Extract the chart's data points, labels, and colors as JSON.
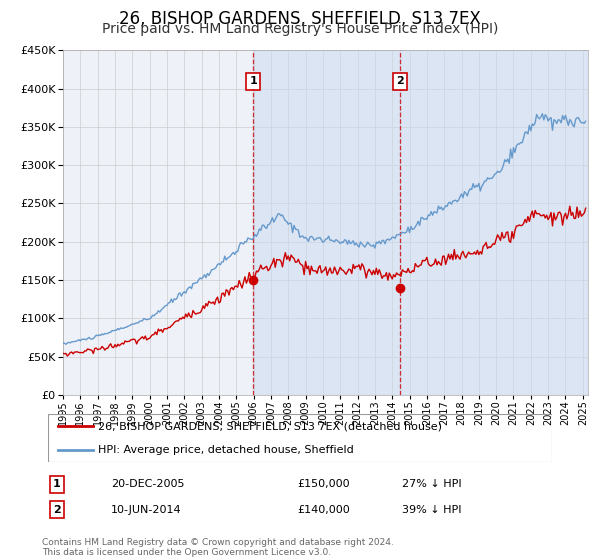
{
  "title": "26, BISHOP GARDENS, SHEFFIELD, S13 7EX",
  "subtitle": "Price paid vs. HM Land Registry's House Price Index (HPI)",
  "title_fontsize": 12,
  "subtitle_fontsize": 10,
  "ylim": [
    0,
    450000
  ],
  "yticks": [
    0,
    50000,
    100000,
    150000,
    200000,
    250000,
    300000,
    350000,
    400000,
    450000
  ],
  "xlim_start": 1995.0,
  "xlim_end": 2025.3,
  "background_color": "#ffffff",
  "plot_bg_color": "#eef2f8",
  "grid_color": "#cccccc",
  "sale1_x": 2005.97,
  "sale1_y": 150000,
  "sale2_x": 2014.44,
  "sale2_y": 140000,
  "sale1_label": "1",
  "sale2_label": "2",
  "sale1_date": "20-DEC-2005",
  "sale1_price": "£150,000",
  "sale1_hpi": "27% ↓ HPI",
  "sale2_date": "10-JUN-2014",
  "sale2_price": "£140,000",
  "sale2_hpi": "39% ↓ HPI",
  "line1_color": "#cc0000",
  "line2_color": "#6699cc",
  "line1_label": "26, BISHOP GARDENS, SHEFFIELD, S13 7EX (detached house)",
  "line2_label": "HPI: Average price, detached house, Sheffield",
  "footnote": "Contains HM Land Registry data © Crown copyright and database right 2024.\nThis data is licensed under the Open Government Licence v3.0.",
  "shaded_color": "#ccd9f0",
  "shaded_alpha": 0.5
}
